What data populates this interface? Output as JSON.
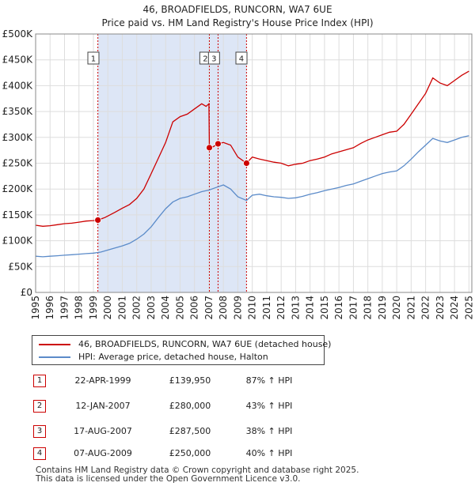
{
  "title_line1": "46, BROADFIELDS, RUNCORN, WA7 6UE",
  "title_line2": "Price paid vs. HM Land Registry's House Price Index (HPI)",
  "chart_data": {
    "type": "line",
    "title": "46, BROADFIELDS, RUNCORN, WA7 6UE — Price paid vs. HM Land Registry's House Price Index (HPI)",
    "xlabel": "",
    "ylabel": "",
    "xlim": [
      1995,
      2025.2
    ],
    "ylim": [
      0,
      500000
    ],
    "x_ticks": [
      1995,
      1996,
      1997,
      1998,
      1999,
      2000,
      2001,
      2002,
      2003,
      2004,
      2005,
      2006,
      2007,
      2008,
      2009,
      2010,
      2011,
      2012,
      2013,
      2014,
      2015,
      2016,
      2017,
      2018,
      2019,
      2020,
      2021,
      2022,
      2023,
      2024,
      2025
    ],
    "y_ticks": [
      {
        "value": 0,
        "label": "£0"
      },
      {
        "value": 50000,
        "label": "£50K"
      },
      {
        "value": 100000,
        "label": "£100K"
      },
      {
        "value": 150000,
        "label": "£150K"
      },
      {
        "value": 200000,
        "label": "£200K"
      },
      {
        "value": 250000,
        "label": "£250K"
      },
      {
        "value": 300000,
        "label": "£300K"
      },
      {
        "value": 350000,
        "label": "£350K"
      },
      {
        "value": 400000,
        "label": "£400K"
      },
      {
        "value": 450000,
        "label": "£450K"
      },
      {
        "value": 500000,
        "label": "£500K"
      }
    ],
    "grid": true,
    "shaded_range": [
      1999.31,
      2009.6
    ],
    "series": [
      {
        "name": "46, BROADFIELDS, RUNCORN, WA7 6UE (detached house)",
        "color": "#cc0000",
        "points": [
          [
            1995.0,
            130000
          ],
          [
            1995.5,
            128000
          ],
          [
            1996.0,
            129000
          ],
          [
            1996.5,
            131000
          ],
          [
            1997.0,
            133000
          ],
          [
            1997.5,
            134000
          ],
          [
            1998.0,
            136000
          ],
          [
            1998.5,
            138000
          ],
          [
            1999.0,
            139000
          ],
          [
            1999.31,
            139950
          ],
          [
            1999.8,
            145000
          ],
          [
            2000.5,
            155000
          ],
          [
            2001.0,
            163000
          ],
          [
            2001.5,
            170000
          ],
          [
            2002.0,
            182000
          ],
          [
            2002.5,
            200000
          ],
          [
            2003.0,
            230000
          ],
          [
            2003.5,
            260000
          ],
          [
            2004.0,
            290000
          ],
          [
            2004.5,
            330000
          ],
          [
            2005.0,
            340000
          ],
          [
            2005.5,
            345000
          ],
          [
            2006.0,
            355000
          ],
          [
            2006.5,
            365000
          ],
          [
            2006.8,
            360000
          ],
          [
            2007.0,
            365000
          ],
          [
            2007.03,
            280000
          ],
          [
            2007.3,
            282000
          ],
          [
            2007.63,
            287500
          ],
          [
            2008.0,
            290000
          ],
          [
            2008.5,
            285000
          ],
          [
            2009.0,
            262000
          ],
          [
            2009.6,
            250000
          ],
          [
            2010.0,
            262000
          ],
          [
            2010.5,
            258000
          ],
          [
            2011.0,
            255000
          ],
          [
            2011.5,
            252000
          ],
          [
            2012.0,
            250000
          ],
          [
            2012.5,
            245000
          ],
          [
            2013.0,
            248000
          ],
          [
            2013.5,
            250000
          ],
          [
            2014.0,
            255000
          ],
          [
            2014.5,
            258000
          ],
          [
            2015.0,
            262000
          ],
          [
            2015.5,
            268000
          ],
          [
            2016.0,
            272000
          ],
          [
            2016.5,
            276000
          ],
          [
            2017.0,
            280000
          ],
          [
            2017.5,
            288000
          ],
          [
            2018.0,
            295000
          ],
          [
            2018.5,
            300000
          ],
          [
            2019.0,
            305000
          ],
          [
            2019.5,
            310000
          ],
          [
            2020.0,
            312000
          ],
          [
            2020.5,
            325000
          ],
          [
            2021.0,
            345000
          ],
          [
            2021.5,
            365000
          ],
          [
            2022.0,
            385000
          ],
          [
            2022.5,
            415000
          ],
          [
            2023.0,
            405000
          ],
          [
            2023.5,
            400000
          ],
          [
            2024.0,
            410000
          ],
          [
            2024.5,
            420000
          ],
          [
            2025.0,
            428000
          ]
        ]
      },
      {
        "name": "HPI: Average price, detached house, Halton",
        "color": "#5b8bc9",
        "points": [
          [
            1995.0,
            70000
          ],
          [
            1995.5,
            69000
          ],
          [
            1996.0,
            70000
          ],
          [
            1996.5,
            71000
          ],
          [
            1997.0,
            72000
          ],
          [
            1997.5,
            73000
          ],
          [
            1998.0,
            74000
          ],
          [
            1998.5,
            75000
          ],
          [
            1999.0,
            76000
          ],
          [
            1999.5,
            78000
          ],
          [
            2000.0,
            82000
          ],
          [
            2000.5,
            86000
          ],
          [
            2001.0,
            90000
          ],
          [
            2001.5,
            95000
          ],
          [
            2002.0,
            103000
          ],
          [
            2002.5,
            113000
          ],
          [
            2003.0,
            127000
          ],
          [
            2003.5,
            145000
          ],
          [
            2004.0,
            162000
          ],
          [
            2004.5,
            175000
          ],
          [
            2005.0,
            182000
          ],
          [
            2005.5,
            185000
          ],
          [
            2006.0,
            190000
          ],
          [
            2006.5,
            195000
          ],
          [
            2007.0,
            198000
          ],
          [
            2007.5,
            203000
          ],
          [
            2008.0,
            208000
          ],
          [
            2008.5,
            200000
          ],
          [
            2009.0,
            185000
          ],
          [
            2009.6,
            178000
          ],
          [
            2010.0,
            188000
          ],
          [
            2010.5,
            190000
          ],
          [
            2011.0,
            187000
          ],
          [
            2011.5,
            185000
          ],
          [
            2012.0,
            184000
          ],
          [
            2012.5,
            182000
          ],
          [
            2013.0,
            183000
          ],
          [
            2013.5,
            186000
          ],
          [
            2014.0,
            190000
          ],
          [
            2014.5,
            193000
          ],
          [
            2015.0,
            197000
          ],
          [
            2015.5,
            200000
          ],
          [
            2016.0,
            203000
          ],
          [
            2016.5,
            207000
          ],
          [
            2017.0,
            210000
          ],
          [
            2017.5,
            215000
          ],
          [
            2018.0,
            220000
          ],
          [
            2018.5,
            225000
          ],
          [
            2019.0,
            230000
          ],
          [
            2019.5,
            233000
          ],
          [
            2020.0,
            235000
          ],
          [
            2020.5,
            245000
          ],
          [
            2021.0,
            258000
          ],
          [
            2021.5,
            272000
          ],
          [
            2022.0,
            285000
          ],
          [
            2022.5,
            298000
          ],
          [
            2023.0,
            293000
          ],
          [
            2023.5,
            290000
          ],
          [
            2024.0,
            295000
          ],
          [
            2024.5,
            300000
          ],
          [
            2025.0,
            303000
          ]
        ]
      }
    ],
    "markers": [
      {
        "label": "1",
        "x": 1999.31,
        "y": 139950
      },
      {
        "label": "2",
        "x": 2007.03,
        "y": 280000
      },
      {
        "label": "3",
        "x": 2007.63,
        "y": 287500
      },
      {
        "label": "4",
        "x": 2009.6,
        "y": 250000
      }
    ]
  },
  "legend": [
    {
      "label": "46, BROADFIELDS, RUNCORN, WA7 6UE (detached house)",
      "color": "#cc0000"
    },
    {
      "label": "HPI: Average price, detached house, Halton",
      "color": "#5b8bc9"
    }
  ],
  "sales": [
    {
      "num": "1",
      "date": "22-APR-1999",
      "price": "£139,950",
      "hpi": "87% ↑ HPI"
    },
    {
      "num": "2",
      "date": "12-JAN-2007",
      "price": "£280,000",
      "hpi": "43% ↑ HPI"
    },
    {
      "num": "3",
      "date": "17-AUG-2007",
      "price": "£287,500",
      "hpi": "38% ↑ HPI"
    },
    {
      "num": "4",
      "date": "07-AUG-2009",
      "price": "£250,000",
      "hpi": "40% ↑ HPI"
    }
  ],
  "footer": {
    "line1": "Contains HM Land Registry data © Crown copyright and database right 2025.",
    "line2": "This data is licensed under the Open Government Licence v3.0."
  }
}
